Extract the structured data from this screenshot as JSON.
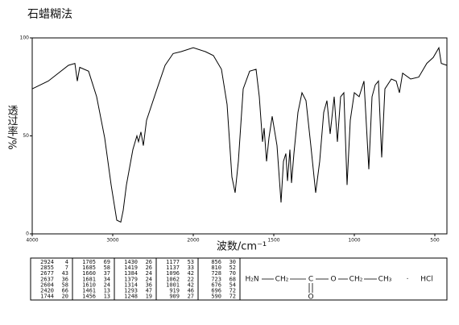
{
  "chart_data": {
    "type": "line",
    "title": "石蜡糊法",
    "x_label": "波数/cm⁻¹",
    "y_label": "透过率/%",
    "xlim": [
      4000,
      425
    ],
    "ylim": [
      0,
      100
    ],
    "xticks": [
      4000,
      3000,
      2000,
      1500,
      1000,
      500
    ],
    "yticks": [
      0,
      50,
      100
    ],
    "color": "#000000",
    "x": [
      4000,
      3800,
      3550,
      3470,
      3440,
      3410,
      3300,
      3200,
      3100,
      3020,
      2950,
      2900,
      2870,
      2830,
      2750,
      2700,
      2680,
      2650,
      2620,
      2580,
      2450,
      2350,
      2250,
      2150,
      2000,
      1925,
      1875,
      1825,
      1790,
      1760,
      1740,
      1720,
      1690,
      1650,
      1610,
      1590,
      1570,
      1560,
      1545,
      1530,
      1510,
      1480,
      1455,
      1440,
      1425,
      1415,
      1400,
      1390,
      1375,
      1350,
      1325,
      1300,
      1270,
      1240,
      1215,
      1190,
      1170,
      1150,
      1125,
      1105,
      1085,
      1065,
      1045,
      1025,
      1000,
      970,
      940,
      910,
      890,
      870,
      850,
      830,
      810,
      770,
      740,
      720,
      700,
      650,
      600,
      550,
      510,
      475,
      460,
      425
    ],
    "values": [
      74,
      78,
      86,
      87,
      78,
      85,
      83,
      70,
      49,
      25,
      7,
      6,
      12,
      25,
      43,
      50,
      47,
      52,
      45,
      58,
      74,
      86,
      92,
      93,
      95,
      93,
      91,
      84,
      66,
      29,
      21,
      37,
      74,
      83,
      84,
      70,
      47,
      54,
      37,
      49,
      60,
      45,
      16,
      37,
      41,
      27,
      43,
      26,
      41,
      62,
      72,
      68,
      45,
      21,
      37,
      62,
      68,
      51,
      70,
      47,
      70,
      72,
      25,
      58,
      72,
      70,
      78,
      33,
      70,
      76,
      78,
      39,
      74,
      79,
      78,
      72,
      82,
      79,
      80,
      87,
      90,
      95,
      87,
      86
    ]
  },
  "table": {
    "rows": [
      [
        2924,
        4,
        1705,
        69,
        1430,
        26,
        1177,
        53,
        856,
        30
      ],
      [
        2855,
        7,
        1685,
        58,
        1419,
        26,
        1137,
        33,
        810,
        52
      ],
      [
        2677,
        43,
        1660,
        37,
        1384,
        24,
        1096,
        42,
        728,
        70
      ],
      [
        2637,
        36,
        1681,
        34,
        1379,
        24,
        1062,
        22,
        723,
        68
      ],
      [
        2604,
        58,
        1610,
        24,
        1314,
        36,
        1001,
        42,
        676,
        54
      ],
      [
        2420,
        66,
        1461,
        13,
        1293,
        47,
        919,
        46,
        696,
        72
      ],
      [
        1744,
        20,
        1456,
        13,
        1248,
        19,
        909,
        27,
        590,
        72
      ]
    ]
  },
  "structure": {
    "parts": [
      "H₂N",
      "CH₂",
      "C",
      "O",
      "CH₂",
      "CH₃",
      "·",
      "HCl",
      "O"
    ]
  }
}
